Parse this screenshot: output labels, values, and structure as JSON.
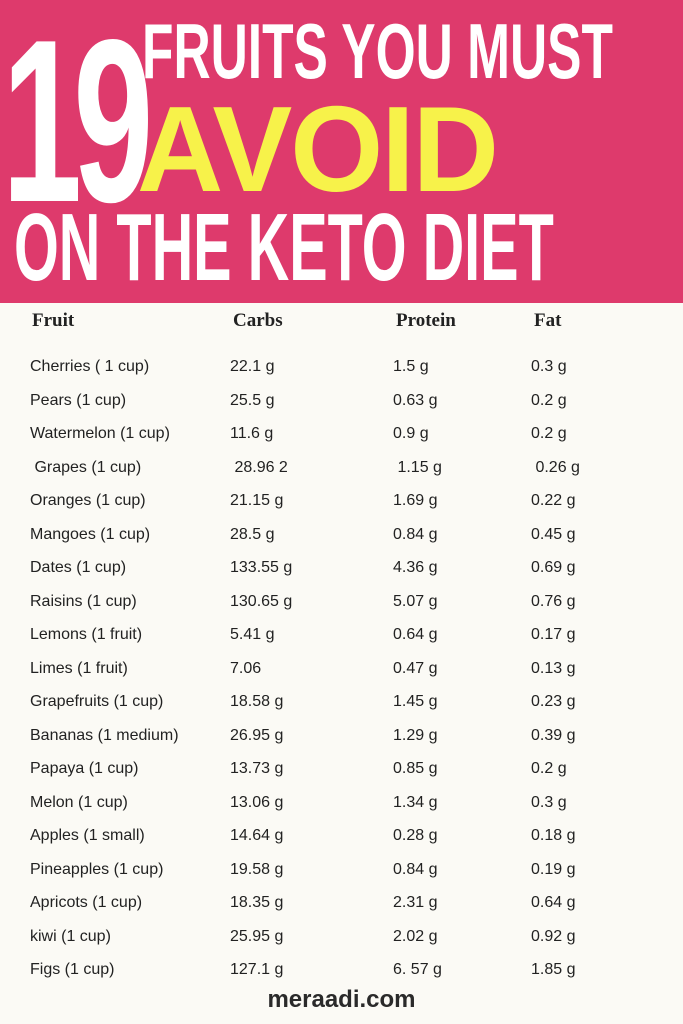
{
  "header": {
    "number": "19",
    "line1": "FRUITS YOU MUST",
    "line2": "AVOID",
    "line3": "ON THE KETO DIET",
    "colors": {
      "background": "#de3a6c",
      "highlight": "#f7f24a",
      "text": "#ffffff"
    }
  },
  "table": {
    "columns": [
      "Fruit",
      "Carbs",
      "Protein",
      "Fat"
    ],
    "rows": [
      [
        "Cherries ( 1 cup)",
        "22.1 g",
        "1.5 g",
        "0.3 g"
      ],
      [
        "Pears (1 cup)",
        "25.5 g",
        "0.63 g",
        "0.2 g"
      ],
      [
        "Watermelon (1 cup)",
        "11.6 g",
        "0.9 g",
        "0.2 g"
      ],
      [
        " Grapes (1 cup)",
        " 28.96 2",
        " 1.15 g",
        " 0.26 g"
      ],
      [
        "Oranges (1 cup)",
        "21.15 g",
        "1.69 g",
        "0.22 g"
      ],
      [
        "Mangoes (1 cup)",
        "28.5 g",
        "0.84 g",
        "0.45 g"
      ],
      [
        "Dates (1 cup)",
        "133.55 g",
        "4.36 g",
        "0.69 g"
      ],
      [
        "Raisins (1 cup)",
        "130.65 g",
        "5.07 g",
        "0.76 g"
      ],
      [
        "Lemons (1 fruit)",
        "5.41 g",
        "0.64 g",
        "0.17 g"
      ],
      [
        "Limes (1 fruit)",
        "7.06",
        "0.47 g",
        "0.13 g"
      ],
      [
        "Grapefruits (1 cup)",
        "18.58 g",
        "1.45 g",
        "0.23 g"
      ],
      [
        "Bananas (1 medium)",
        "26.95 g",
        "1.29 g",
        "0.39 g"
      ],
      [
        "Papaya (1 cup)",
        "13.73 g",
        "0.85 g",
        "0.2 g"
      ],
      [
        "Melon (1 cup)",
        "13.06 g",
        "1.34 g",
        "0.3 g"
      ],
      [
        "Apples (1 small)",
        "14.64 g",
        "0.28 g",
        "0.18 g"
      ],
      [
        "Pineapples (1 cup)",
        "19.58 g",
        "0.84 g",
        "0.19 g"
      ],
      [
        "Apricots (1 cup)",
        "18.35 g",
        "2.31 g",
        "0.64 g"
      ],
      [
        "kiwi (1 cup)",
        "25.95 g",
        "2.02 g",
        "0.92 g"
      ],
      [
        "Figs (1 cup)",
        "127.1 g",
        "6. 57 g",
        "1.85 g"
      ]
    ]
  },
  "footer": {
    "site": "meraadi.com"
  }
}
